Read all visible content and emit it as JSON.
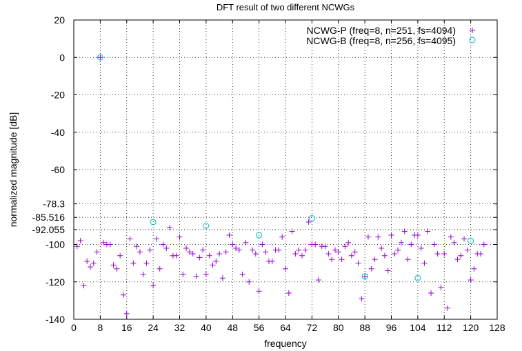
{
  "chart_data": {
    "type": "scatter",
    "title": "DFT result of two different NCWGs",
    "xlabel": "frequency",
    "ylabel": "normalized magnitude [dB]",
    "xlim": [
      0,
      128
    ],
    "ylim": [
      -140,
      20
    ],
    "x_ticks": [
      "0",
      "8",
      "16",
      "24",
      "32",
      "40",
      "48",
      "56",
      "64",
      "72",
      "80",
      "88",
      "96",
      "104",
      "112",
      "120",
      "128"
    ],
    "y_ticks": [
      {
        "value": 20,
        "label": "20"
      },
      {
        "value": 0,
        "label": "0"
      },
      {
        "value": -20,
        "label": "-20"
      },
      {
        "value": -40,
        "label": "-40"
      },
      {
        "value": -60,
        "label": "-60"
      },
      {
        "value": -78.3,
        "label": "-78.3"
      },
      {
        "value": -85.516,
        "label": "-85.516"
      },
      {
        "value": -92.055,
        "label": "-92.055"
      },
      {
        "value": -100,
        "label": "-100"
      },
      {
        "value": -120,
        "label": "-120"
      },
      {
        "value": -140,
        "label": "-140"
      }
    ],
    "grid": true,
    "legend_position": "top-right",
    "series": [
      {
        "name": "NCWG-P (freq=8, n=251, fs=4094)",
        "marker": "plus",
        "color": "#9400D3",
        "x": [
          1,
          2,
          3,
          4,
          5,
          6,
          7,
          8,
          9,
          10,
          11,
          12,
          13,
          14,
          15,
          16,
          17,
          18,
          19,
          20,
          21,
          22,
          23,
          24,
          25,
          26,
          27,
          28,
          29,
          30,
          31,
          32,
          33,
          34,
          35,
          36,
          37,
          38,
          39,
          40,
          41,
          42,
          43,
          44,
          45,
          46,
          47,
          48,
          49,
          50,
          51,
          52,
          53,
          54,
          55,
          56,
          57,
          58,
          59,
          60,
          61,
          62,
          63,
          64,
          65,
          66,
          67,
          68,
          69,
          70,
          71,
          72,
          73,
          74,
          75,
          76,
          77,
          78,
          79,
          80,
          81,
          82,
          83,
          84,
          85,
          86,
          87,
          88,
          89,
          90,
          91,
          92,
          93,
          94,
          95,
          96,
          97,
          98,
          99,
          100,
          101,
          102,
          103,
          104,
          105,
          106,
          107,
          108,
          109,
          110,
          111,
          112,
          113,
          114,
          115,
          116,
          117,
          118,
          119,
          120,
          121,
          122,
          123,
          124
        ],
        "y": [
          -101,
          -98,
          -122,
          -109,
          -112,
          -110,
          -104,
          0,
          -99,
          -100,
          -100,
          -111,
          -113,
          -106,
          -127,
          -137,
          -97,
          -110,
          -101,
          -104,
          -116,
          -110,
          -103,
          -122,
          -97,
          -113,
          -100,
          -102,
          -91,
          -106,
          -106,
          -96,
          -116,
          -102,
          -104,
          -105,
          -117,
          -107,
          -103,
          -116,
          -106,
          -111,
          -109,
          -105,
          -118,
          -104,
          -95,
          -100,
          -102,
          -103,
          -116,
          -99,
          -120,
          -103,
          -105,
          -125,
          -100,
          -104,
          -109,
          -109,
          -103,
          -103,
          -96,
          -113,
          -126,
          -93,
          -105,
          -103,
          -106,
          -103,
          -88,
          -100,
          -100,
          -119,
          -101,
          -101,
          -105,
          -108,
          -103,
          -104,
          -108,
          -101,
          -99,
          -106,
          -104,
          -110,
          -129,
          -117,
          -96,
          -113,
          -108,
          -96,
          -102,
          -106,
          -114,
          -95,
          -105,
          -103,
          -99,
          -93,
          -108,
          -100,
          -95,
          -95,
          -102,
          -110,
          -93,
          -126,
          -100,
          -105,
          -123,
          -105,
          -134,
          -96,
          -99,
          -108,
          -106,
          -97,
          -103,
          -119,
          -113,
          -105,
          -105,
          -100
        ],
        "__note_x_offset": "x points are at 1..124 step 1 as shown"
      },
      {
        "name": "NCWG-B (freq=8, n=256, fs=4095)",
        "marker": "circle",
        "color": "#00BFBF",
        "x": [
          8,
          24,
          40,
          56,
          72,
          88,
          104,
          120
        ],
        "y": [
          0,
          -88,
          -90,
          -95,
          -86,
          -117,
          -118,
          -98
        ]
      }
    ]
  }
}
